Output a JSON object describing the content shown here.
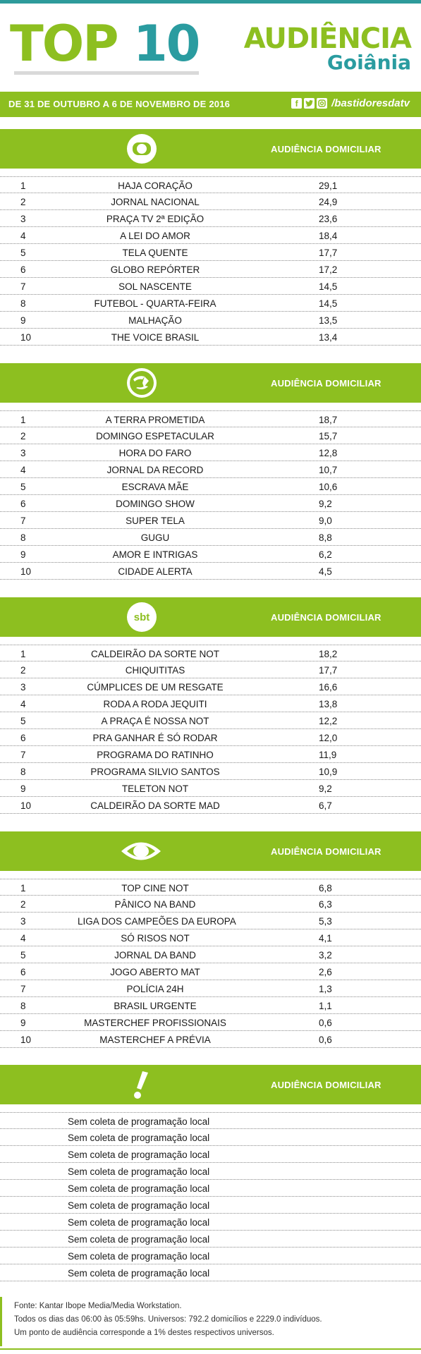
{
  "header": {
    "title_part1": "TOP",
    "title_part2": "10",
    "brand_line1": "AUDIÊNCIA",
    "brand_line2": "Goiânia"
  },
  "datebar": {
    "date": "DE 31 DE OUTUBRO A 6 DE NOVEMBRO DE 2016",
    "handle": "/bastidoresdatv",
    "icons": [
      "facebook-icon",
      "twitter-icon",
      "instagram-icon"
    ]
  },
  "colors": {
    "accent": "#8dbf20",
    "teal": "#2a9ca0"
  },
  "sections": [
    {
      "logo": "globo-logo",
      "heading": "AUDIÊNCIA DOMICILIAR",
      "rows": [
        {
          "rank": "1",
          "program": "HAJA CORAÇÃO",
          "value": "29,1"
        },
        {
          "rank": "2",
          "program": "JORNAL NACIONAL",
          "value": "24,9"
        },
        {
          "rank": "3",
          "program": "PRAÇA TV 2ª EDIÇÃO",
          "value": "23,6"
        },
        {
          "rank": "4",
          "program": "A LEI DO AMOR",
          "value": "18,4"
        },
        {
          "rank": "5",
          "program": "TELA QUENTE",
          "value": "17,7"
        },
        {
          "rank": "6",
          "program": "GLOBO REPÓRTER",
          "value": "17,2"
        },
        {
          "rank": "7",
          "program": "SOL NASCENTE",
          "value": "14,5"
        },
        {
          "rank": "8",
          "program": "FUTEBOL - QUARTA-FEIRA",
          "value": "14,5"
        },
        {
          "rank": "9",
          "program": "MALHAÇÃO",
          "value": "13,5"
        },
        {
          "rank": "10",
          "program": "THE VOICE BRASIL",
          "value": "13,4"
        }
      ]
    },
    {
      "logo": "record-logo",
      "heading": "AUDIÊNCIA DOMICILIAR",
      "rows": [
        {
          "rank": "1",
          "program": "A TERRA PROMETIDA",
          "value": "18,7"
        },
        {
          "rank": "2",
          "program": "DOMINGO ESPETACULAR",
          "value": "15,7"
        },
        {
          "rank": "3",
          "program": "HORA DO FARO",
          "value": "12,8"
        },
        {
          "rank": "4",
          "program": "JORNAL DA RECORD",
          "value": "10,7"
        },
        {
          "rank": "5",
          "program": "ESCRAVA MÃE",
          "value": "10,6"
        },
        {
          "rank": "6",
          "program": "DOMINGO SHOW",
          "value": "9,2"
        },
        {
          "rank": "7",
          "program": "SUPER TELA",
          "value": "9,0"
        },
        {
          "rank": "8",
          "program": "GUGU",
          "value": "8,8"
        },
        {
          "rank": "9",
          "program": "AMOR E INTRIGAS",
          "value": "6,2"
        },
        {
          "rank": "10",
          "program": "CIDADE ALERTA",
          "value": "4,5"
        }
      ]
    },
    {
      "logo": "sbt-logo",
      "logo_text": "sbt",
      "heading": "AUDIÊNCIA DOMICILIAR",
      "rows": [
        {
          "rank": "1",
          "program": "CALDEIRÃO DA SORTE NOT",
          "value": "18,2"
        },
        {
          "rank": "2",
          "program": "CHIQUITITAS",
          "value": "17,7"
        },
        {
          "rank": "3",
          "program": "CÚMPLICES DE UM RESGATE",
          "value": "16,6"
        },
        {
          "rank": "4",
          "program": "RODA A RODA JEQUITI",
          "value": "13,8"
        },
        {
          "rank": "5",
          "program": "A PRAÇA É NOSSA NOT",
          "value": "12,2"
        },
        {
          "rank": "6",
          "program": "PRA GANHAR É SÓ RODAR",
          "value": "12,0"
        },
        {
          "rank": "7",
          "program": "PROGRAMA DO RATINHO",
          "value": "11,9"
        },
        {
          "rank": "8",
          "program": "PROGRAMA SILVIO SANTOS",
          "value": "10,9"
        },
        {
          "rank": "9",
          "program": "TELETON NOT",
          "value": "9,2"
        },
        {
          "rank": "10",
          "program": "CALDEIRÃO DA SORTE MAD",
          "value": "6,7"
        }
      ]
    },
    {
      "logo": "band-logo",
      "heading": "AUDIÊNCIA DOMICILIAR",
      "rows": [
        {
          "rank": "1",
          "program": "TOP CINE NOT",
          "value": "6,8"
        },
        {
          "rank": "2",
          "program": "PÂNICO NA BAND",
          "value": "6,3"
        },
        {
          "rank": "3",
          "program": "LIGA DOS CAMPEÕES DA EUROPA",
          "value": "5,3"
        },
        {
          "rank": "4",
          "program": "SÓ RISOS NOT",
          "value": "4,1"
        },
        {
          "rank": "5",
          "program": "JORNAL DA BAND",
          "value": "3,2"
        },
        {
          "rank": "6",
          "program": "JOGO ABERTO MAT",
          "value": "2,6"
        },
        {
          "rank": "7",
          "program": "POLÍCIA 24H",
          "value": "1,3"
        },
        {
          "rank": "8",
          "program": "BRASIL URGENTE",
          "value": "1,1"
        },
        {
          "rank": "9",
          "program": "MASTERCHEF PROFISSIONAIS",
          "value": "0,6"
        },
        {
          "rank": "10",
          "program": "MASTERCHEF A PRÉVIA",
          "value": "0,6"
        }
      ]
    },
    {
      "logo": "redetv-logo",
      "heading": "AUDIÊNCIA DOMICILIAR",
      "local_rows": [
        "Sem coleta de programação local",
        "Sem coleta de programação local",
        "Sem coleta de programação local",
        "Sem coleta de programação local",
        "Sem coleta de programação local",
        "Sem coleta de programação local",
        "Sem coleta de programação local",
        "Sem coleta de programação local",
        "Sem coleta de programação local",
        "Sem coleta de programação local"
      ]
    }
  ],
  "source": {
    "line1": "Fonte: Kantar Ibope Media/Media Workstation.",
    "line2": "Todos os dias das 06:00 às 05:59hs. Universos: 792.2 domicílios e 2229.0 indivíduos.",
    "line3": "Um ponto de audiência corresponde a 1% destes respectivos universos."
  }
}
